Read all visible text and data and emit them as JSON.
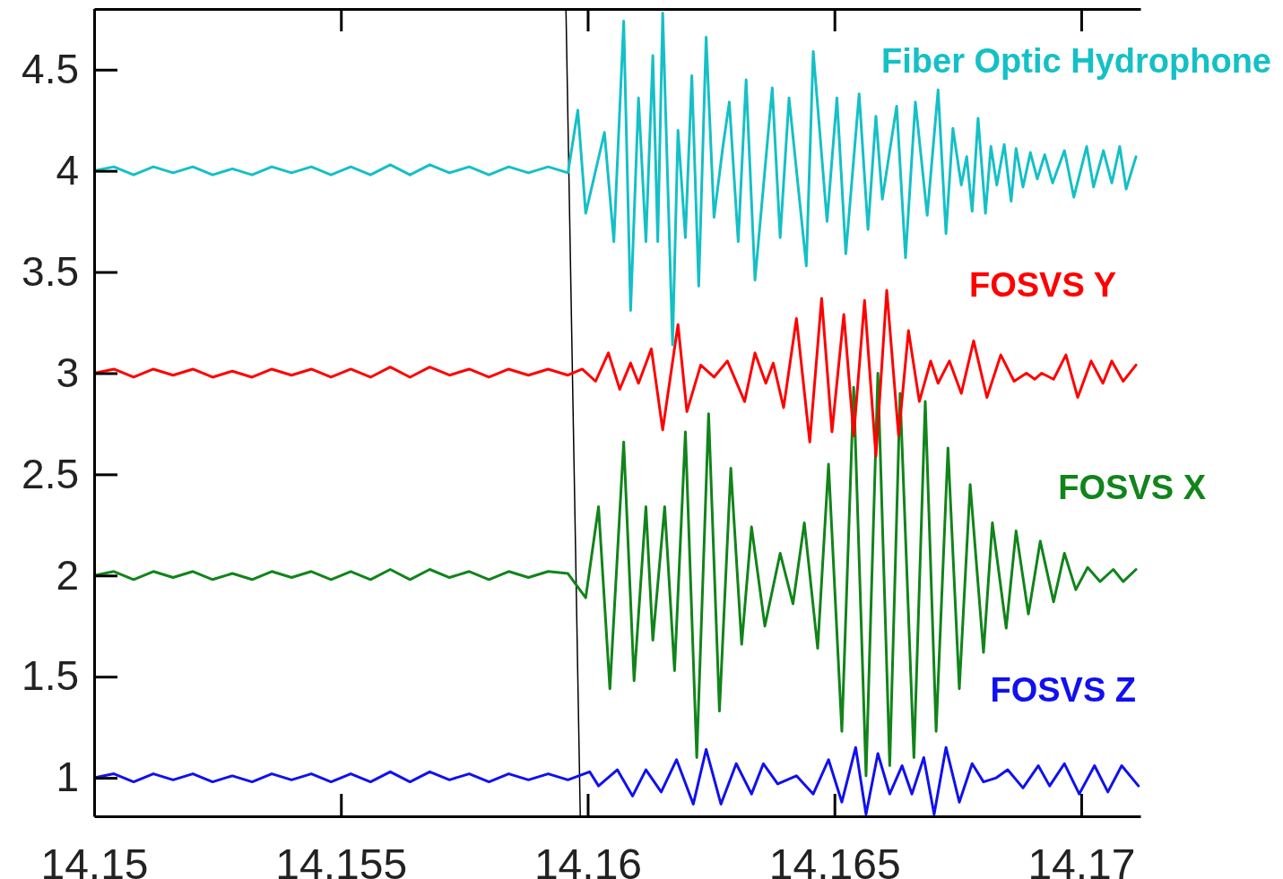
{
  "chart_data": {
    "type": "line",
    "xlim": [
      14.15,
      14.1712
    ],
    "ylim": [
      0.81,
      4.8
    ],
    "xticks": [
      14.15,
      14.155,
      14.16,
      14.165,
      14.17
    ],
    "yticks": [
      1,
      1.5,
      2,
      2.5,
      3,
      3.5,
      4,
      4.5
    ],
    "grid": false,
    "marker": "none",
    "line_style": "solid",
    "series": [
      {
        "name": "Fiber Optic Hydrophone",
        "color": "#14c0c6",
        "x": [
          14.15,
          14.1504,
          14.1508,
          14.1512,
          14.1516,
          14.152,
          14.1524,
          14.1528,
          14.1532,
          14.1536,
          14.154,
          14.1544,
          14.1548,
          14.1552,
          14.1556,
          14.156,
          14.1564,
          14.1568,
          14.1572,
          14.1576,
          14.158,
          14.1584,
          14.1588,
          14.1592,
          14.1596,
          14.1598,
          14.15996,
          14.16034,
          14.16053,
          14.16073,
          14.16087,
          14.16103,
          14.16118,
          14.16132,
          14.16142,
          14.16152,
          14.16172,
          14.16183,
          14.16198,
          14.16211,
          14.16225,
          14.1624,
          14.16256,
          14.16274,
          14.16287,
          14.16305,
          14.16321,
          14.16339,
          14.16374,
          14.1639,
          14.16408,
          14.16443,
          14.16457,
          14.16485,
          14.16505,
          14.16523,
          14.1655,
          14.16568,
          14.16584,
          14.16597,
          14.16626,
          14.16644,
          14.16664,
          14.16688,
          14.1671,
          14.16726,
          14.1674,
          14.16757,
          14.16768,
          14.16779,
          14.16791,
          14.16806,
          14.16817,
          14.16829,
          14.16844,
          14.16858,
          14.16868,
          14.16882,
          14.16897,
          14.16911,
          14.16926,
          14.16942,
          14.16966,
          14.16985,
          14.17011,
          14.17025,
          14.17045,
          14.17062,
          14.17078,
          14.17091,
          14.17111
        ],
        "values": [
          4,
          4.02,
          3.98,
          4.02,
          3.99,
          4.02,
          3.98,
          4.01,
          3.98,
          4.02,
          3.99,
          4.02,
          3.98,
          4.02,
          3.98,
          4.03,
          3.98,
          4.03,
          3.99,
          4.02,
          3.98,
          4.02,
          3.99,
          4.02,
          3.99,
          4.3,
          3.79,
          4.19,
          3.65,
          4.74,
          3.31,
          4.36,
          3.65,
          4.57,
          3.65,
          4.78,
          3.14,
          4.2,
          3.67,
          4.47,
          3.43,
          4.66,
          3.77,
          4.12,
          4.34,
          3.65,
          4.45,
          3.46,
          4.41,
          3.67,
          4.36,
          3.53,
          4.59,
          3.75,
          4.36,
          3.59,
          4.38,
          3.71,
          4.27,
          3.86,
          4.32,
          3.57,
          4.34,
          3.78,
          4.4,
          3.69,
          4.21,
          3.93,
          4.07,
          3.8,
          4.26,
          3.79,
          4.12,
          3.93,
          4.13,
          3.85,
          4.11,
          3.92,
          4.09,
          3.96,
          4.08,
          3.94,
          4.1,
          3.87,
          4.12,
          3.92,
          4.1,
          3.94,
          4.12,
          3.91,
          4.07
        ]
      },
      {
        "name": "FOSVS Y",
        "color": "#ff0000",
        "x": [
          14.15,
          14.1504,
          14.1508,
          14.1512,
          14.1516,
          14.152,
          14.1524,
          14.1528,
          14.1532,
          14.1536,
          14.154,
          14.1544,
          14.1548,
          14.1552,
          14.1556,
          14.156,
          14.1564,
          14.1568,
          14.1572,
          14.1576,
          14.158,
          14.1584,
          14.1588,
          14.1592,
          14.1596,
          14.15989,
          14.16016,
          14.16042,
          14.16065,
          14.16087,
          14.16103,
          14.16129,
          14.16152,
          14.16183,
          14.16201,
          14.16229,
          14.16256,
          14.16283,
          14.16318,
          14.16339,
          14.16361,
          14.16376,
          14.16397,
          14.16423,
          14.1645,
          14.16474,
          14.16495,
          14.16519,
          14.16539,
          14.16561,
          14.16584,
          14.16606,
          14.1663,
          14.1665,
          14.16672,
          14.16695,
          14.1671,
          14.16733,
          14.16757,
          14.16782,
          14.16809,
          14.16837,
          14.16864,
          14.16889,
          14.16906,
          14.1692,
          14.16944,
          14.16969,
          14.16993,
          14.1702,
          14.17044,
          14.17062,
          14.17085,
          14.17111
        ],
        "values": [
          3,
          3.02,
          2.98,
          3.02,
          2.99,
          3.02,
          2.98,
          3.01,
          2.98,
          3.02,
          2.99,
          3.02,
          2.98,
          3.02,
          2.98,
          3.03,
          2.98,
          3.03,
          2.99,
          3.02,
          2.98,
          3.02,
          2.99,
          3.02,
          2.99,
          3.02,
          2.96,
          3.1,
          2.92,
          3.05,
          2.95,
          3.12,
          2.72,
          3.24,
          2.81,
          3.04,
          2.98,
          3.06,
          2.86,
          3.1,
          2.95,
          3.05,
          2.83,
          3.27,
          2.66,
          3.37,
          2.71,
          3.29,
          2.69,
          3.36,
          2.59,
          3.41,
          2.69,
          3.21,
          2.86,
          3.06,
          2.95,
          3.06,
          2.9,
          3.16,
          2.88,
          3.09,
          2.96,
          3,
          2.97,
          3,
          2.97,
          3.09,
          2.88,
          3.06,
          2.95,
          3.06,
          2.96,
          3.04
        ]
      },
      {
        "name": "FOSVS X",
        "color": "#11841a",
        "x": [
          14.15,
          14.1504,
          14.1508,
          14.1512,
          14.1516,
          14.152,
          14.1524,
          14.1528,
          14.1532,
          14.1536,
          14.154,
          14.1544,
          14.1548,
          14.1552,
          14.1556,
          14.156,
          14.1564,
          14.1568,
          14.1572,
          14.1576,
          14.158,
          14.1584,
          14.1588,
          14.1592,
          14.1596,
          14.15996,
          14.16022,
          14.16045,
          14.16073,
          14.16094,
          14.16118,
          14.16132,
          14.16156,
          14.16176,
          14.16198,
          14.16221,
          14.16245,
          14.16267,
          14.1629,
          14.16312,
          14.16332,
          14.16359,
          14.1639,
          14.16416,
          14.16439,
          14.16466,
          14.16488,
          14.16515,
          14.16539,
          14.16564,
          14.16588,
          14.16612,
          14.16633,
          14.16661,
          14.16684,
          14.16706,
          14.1673,
          14.16753,
          14.16775,
          14.16802,
          14.1682,
          14.16848,
          14.16868,
          14.16893,
          14.16917,
          14.16944,
          14.16966,
          14.16989,
          14.17013,
          14.17038,
          14.17065,
          14.17085,
          14.17111
        ],
        "values": [
          2,
          2.02,
          1.98,
          2.02,
          1.99,
          2.02,
          1.98,
          2.01,
          1.98,
          2.02,
          1.99,
          2.02,
          1.98,
          2.02,
          1.98,
          2.03,
          1.98,
          2.03,
          1.99,
          2.02,
          1.98,
          2.02,
          1.99,
          2.02,
          2.01,
          1.89,
          2.34,
          1.44,
          2.66,
          1.48,
          2.34,
          1.68,
          2.34,
          1.53,
          2.71,
          1.1,
          2.8,
          1.33,
          2.53,
          1.66,
          2.24,
          1.75,
          2.11,
          1.86,
          2.26,
          1.64,
          2.55,
          1.23,
          2.93,
          1.01,
          3,
          1.06,
          2.9,
          1.1,
          2.86,
          1.23,
          2.63,
          1.44,
          2.45,
          1.62,
          2.26,
          1.74,
          2.22,
          1.81,
          2.17,
          1.87,
          2.11,
          1.93,
          2.04,
          1.97,
          2.03,
          1.97,
          2.03
        ]
      },
      {
        "name": "FOSVS Z",
        "color": "#1010f0",
        "x": [
          14.15,
          14.1504,
          14.1508,
          14.1512,
          14.1516,
          14.152,
          14.1524,
          14.1528,
          14.1532,
          14.1536,
          14.154,
          14.1544,
          14.1548,
          14.1552,
          14.1556,
          14.156,
          14.1564,
          14.1568,
          14.1572,
          14.1576,
          14.158,
          14.1584,
          14.1588,
          14.1592,
          14.1596,
          14.16004,
          14.16022,
          14.1606,
          14.16091,
          14.16118,
          14.16149,
          14.1618,
          14.16214,
          14.1624,
          14.1627,
          14.16301,
          14.16332,
          14.16356,
          14.16385,
          14.16423,
          14.16457,
          14.16488,
          14.16515,
          14.16543,
          14.16564,
          14.16588,
          14.16612,
          14.16637,
          14.16657,
          14.16681,
          14.16702,
          14.16726,
          14.16753,
          14.16779,
          14.16802,
          14.16828,
          14.16851,
          14.16882,
          14.16913,
          14.16936,
          14.16966,
          14.16996,
          14.17027,
          14.17054,
          14.17082,
          14.17116
        ],
        "values": [
          1,
          1.02,
          0.98,
          1.02,
          0.99,
          1.02,
          0.98,
          1.01,
          0.98,
          1.02,
          0.99,
          1.02,
          0.98,
          1.02,
          0.98,
          1.03,
          0.98,
          1.03,
          0.99,
          1.02,
          0.98,
          1.02,
          0.99,
          1.02,
          0.99,
          1.03,
          0.96,
          1.04,
          0.91,
          1.04,
          0.93,
          1.09,
          0.87,
          1.14,
          0.87,
          1.07,
          0.92,
          1.07,
          0.97,
          1.01,
          0.92,
          1.09,
          0.88,
          1.15,
          0.82,
          1.12,
          0.92,
          1.06,
          0.92,
          1.1,
          0.82,
          1.15,
          0.88,
          1.07,
          0.98,
          1,
          1.04,
          0.95,
          1.06,
          0.96,
          1.07,
          0.92,
          1.06,
          0.93,
          1.06,
          0.96
        ]
      },
      {
        "type": "line",
        "color": "#000000",
        "x": [
          14.15956,
          14.15985
        ],
        "values": [
          4.8,
          0.81
        ]
      }
    ]
  }
}
